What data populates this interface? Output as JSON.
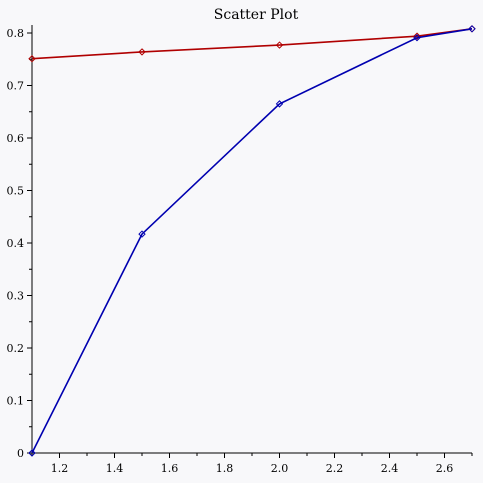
{
  "chart_data": {
    "type": "line",
    "title": "Scatter Plot",
    "xlabel": "",
    "ylabel": "",
    "xlim": [
      1.1,
      2.7
    ],
    "ylim": [
      0,
      0.81
    ],
    "x_ticks": [
      1.2,
      1.4,
      1.6,
      1.8,
      2.0,
      2.2,
      2.4,
      2.6
    ],
    "x_tick_labels": [
      "1.2",
      "1.4",
      "1.6",
      "1.8",
      "2.0",
      "2.2",
      "2.4",
      "2.6"
    ],
    "y_ticks": [
      0,
      0.1,
      0.2,
      0.3,
      0.4,
      0.5,
      0.6,
      0.7,
      0.8
    ],
    "y_tick_labels": [
      "0",
      "0.1",
      "0.2",
      "0.3",
      "0.4",
      "0.5",
      "0.6",
      "0.7",
      "0.8"
    ],
    "grid": false,
    "series": [
      {
        "color": "#b00000",
        "marker": "diamond",
        "x": [
          1.1,
          1.5,
          2.0,
          2.5,
          2.7
        ],
        "y": [
          0.751,
          0.764,
          0.777,
          0.794,
          0.808
        ]
      },
      {
        "color": "#0000b0",
        "marker": "diamond",
        "x": [
          1.1,
          1.5,
          2.0,
          2.5,
          2.7
        ],
        "y": [
          0.0,
          0.417,
          0.665,
          0.791,
          0.808
        ]
      }
    ]
  }
}
